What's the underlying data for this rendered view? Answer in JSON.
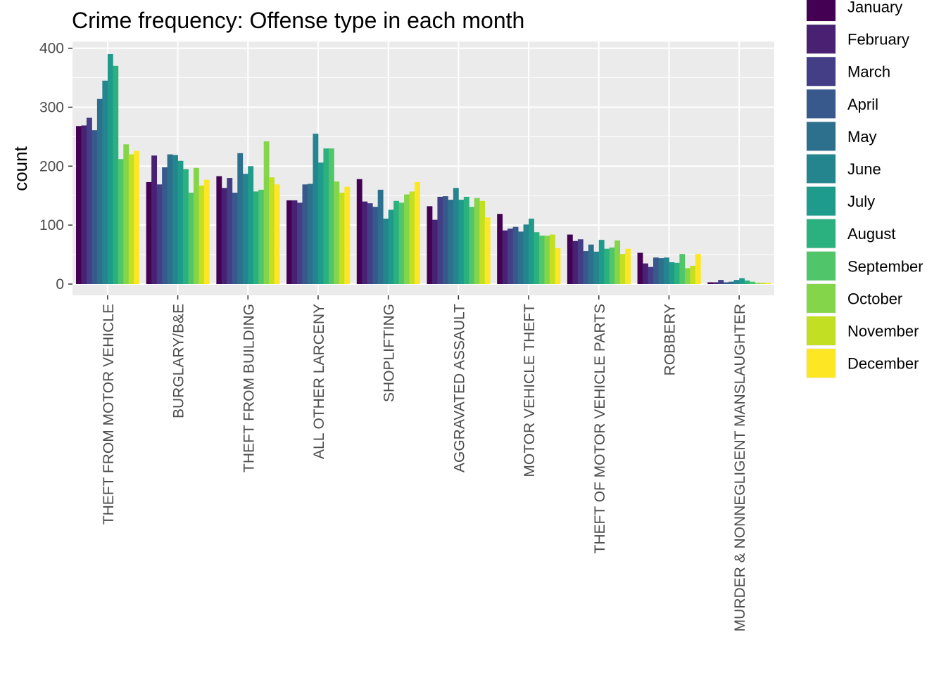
{
  "chart_data": {
    "type": "bar",
    "title": "Crime frequency: Offense type in each month",
    "xlabel": "",
    "ylabel": "count",
    "ylim": [
      0,
      420
    ],
    "yticks": [
      0,
      100,
      200,
      300,
      400
    ],
    "grid": true,
    "legend_position": "right",
    "categories": [
      "THEFT FROM MOTOR VEHICLE",
      "BURGLARY/B&E",
      "THEFT FROM BUILDING",
      "ALL OTHER LARCENY",
      "SHOPLIFTING",
      "AGGRAVATED ASSAULT",
      "MOTOR VEHICLE THEFT",
      "THEFT OF MOTOR VEHICLE PARTS",
      "ROBBERY",
      "MURDER & NONNEGLIGENT MANSLAUGHTER"
    ],
    "series": [
      {
        "name": "January",
        "color": "#440154",
        "values": [
          268,
          173,
          183,
          142,
          178,
          132,
          119,
          84,
          53,
          3
        ]
      },
      {
        "name": "February",
        "color": "#482173",
        "values": [
          269,
          218,
          163,
          142,
          140,
          109,
          91,
          73,
          35,
          3
        ]
      },
      {
        "name": "March",
        "color": "#433E85",
        "values": [
          282,
          169,
          180,
          138,
          137,
          148,
          94,
          76,
          29,
          7
        ]
      },
      {
        "name": "April",
        "color": "#38598C",
        "values": [
          261,
          198,
          155,
          169,
          131,
          149,
          97,
          56,
          45,
          3
        ]
      },
      {
        "name": "May",
        "color": "#2D708E",
        "values": [
          314,
          220,
          222,
          170,
          160,
          143,
          89,
          67,
          44,
          4
        ]
      },
      {
        "name": "June",
        "color": "#25858E",
        "values": [
          345,
          219,
          187,
          255,
          111,
          163,
          101,
          55,
          45,
          7
        ]
      },
      {
        "name": "July",
        "color": "#1E9B8A",
        "values": [
          390,
          209,
          200,
          206,
          126,
          143,
          111,
          75,
          37,
          10
        ]
      },
      {
        "name": "August",
        "color": "#2BB07F",
        "values": [
          370,
          195,
          157,
          230,
          141,
          148,
          88,
          60,
          36,
          6
        ]
      },
      {
        "name": "September",
        "color": "#51C56A",
        "values": [
          212,
          155,
          160,
          230,
          138,
          131,
          82,
          62,
          51,
          4
        ]
      },
      {
        "name": "October",
        "color": "#85D54A",
        "values": [
          237,
          197,
          242,
          174,
          152,
          146,
          82,
          74,
          27,
          2
        ]
      },
      {
        "name": "November",
        "color": "#C2DF23",
        "values": [
          220,
          167,
          181,
          155,
          157,
          141,
          84,
          51,
          31,
          2
        ]
      },
      {
        "name": "December",
        "color": "#FDE725",
        "values": [
          226,
          177,
          169,
          165,
          173,
          113,
          61,
          60,
          51,
          2
        ]
      }
    ]
  }
}
